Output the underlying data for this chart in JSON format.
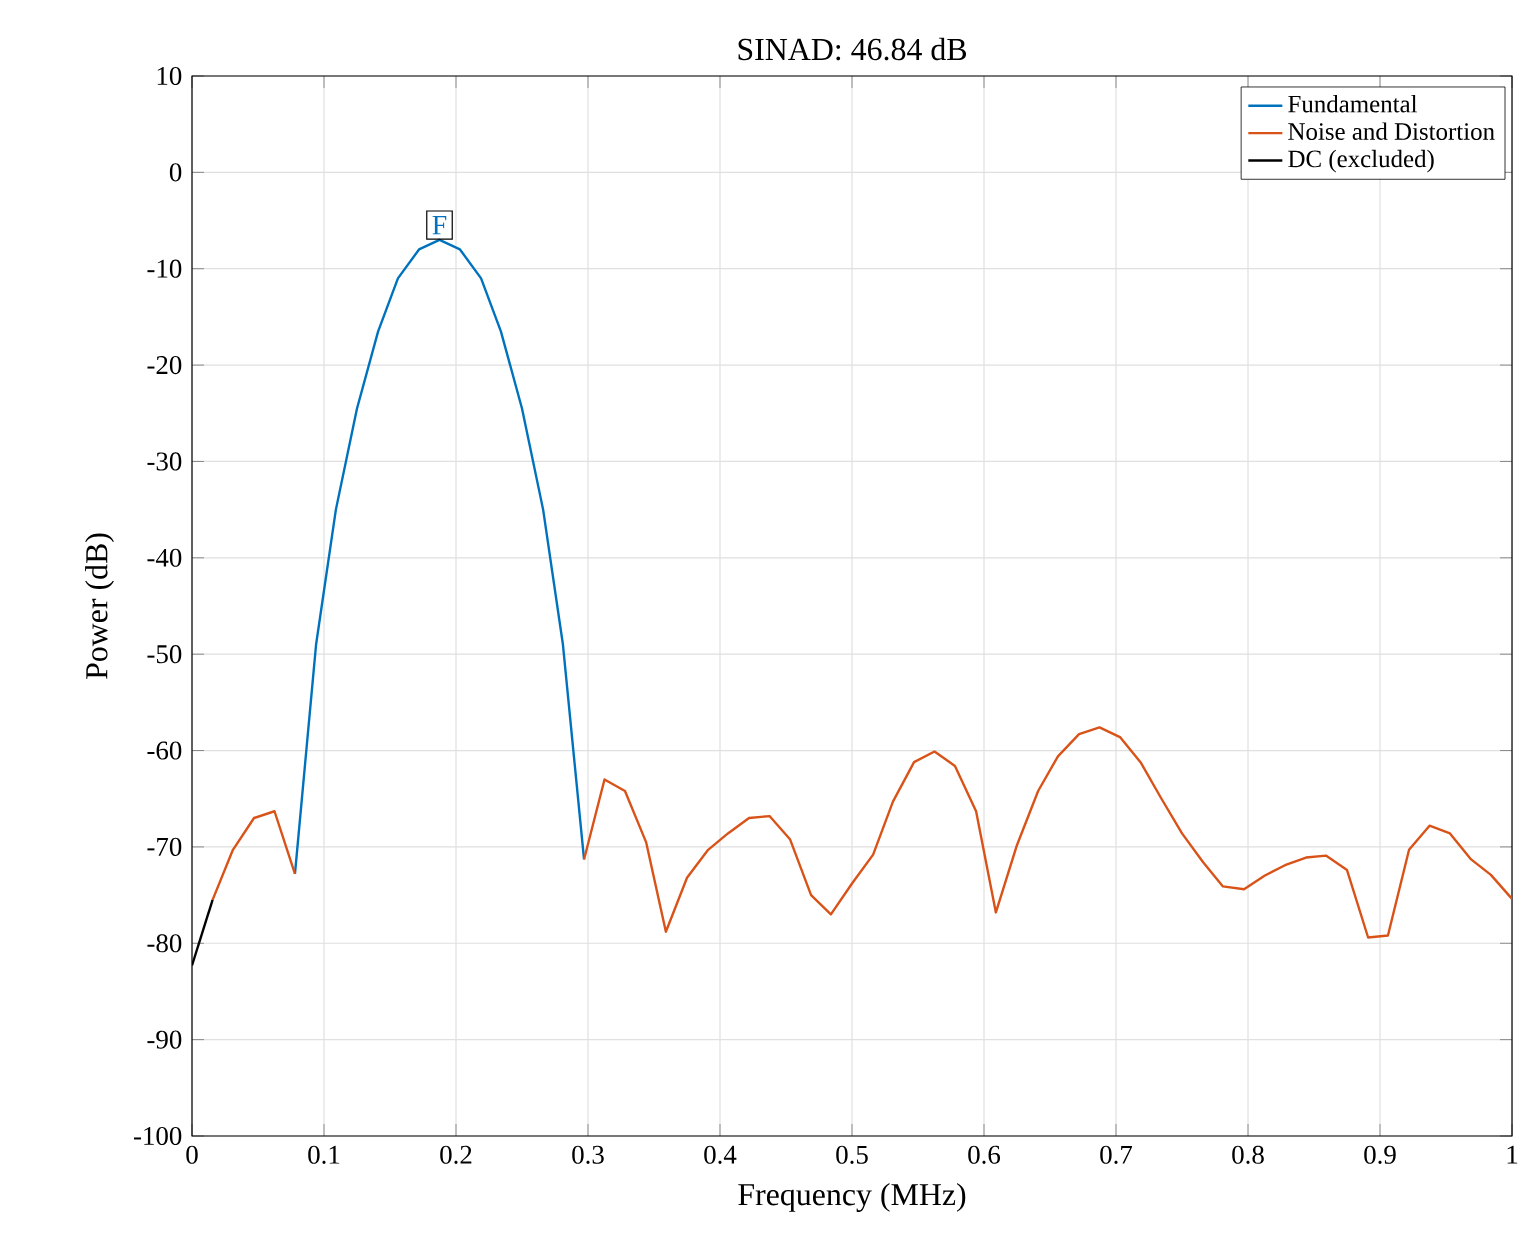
{
  "chart_data": {
    "type": "line",
    "title": "SINAD: 46.84 dB",
    "xlabel": "Frequency (MHz)",
    "ylabel": "Power (dB)",
    "xlim": [
      0,
      1
    ],
    "ylim": [
      -100,
      10
    ],
    "xticks": [
      0,
      0.1,
      0.2,
      0.3,
      0.4,
      0.5,
      0.6,
      0.7,
      0.8,
      0.9,
      1
    ],
    "yticks": [
      -100,
      -90,
      -80,
      -70,
      -60,
      -50,
      -40,
      -30,
      -20,
      -10,
      0,
      10
    ],
    "grid": true,
    "legend": "top right",
    "line_style": "solid",
    "marker": "none",
    "annotations": [
      {
        "text": "F",
        "x": 0.1875,
        "y": -7
      }
    ],
    "series": [
      {
        "name": "Fundamental",
        "color": "#0072bd",
        "x": [
          0.078,
          0.094,
          0.109,
          0.125,
          0.141,
          0.156,
          0.172,
          0.1875,
          0.203,
          0.219,
          0.234,
          0.25,
          0.266,
          0.281,
          0.297
        ],
        "values": [
          -72.8,
          -49,
          -35,
          -24.5,
          -16.5,
          -11,
          -8,
          -7,
          -8,
          -11,
          -16.5,
          -24.5,
          -35,
          -49,
          -71.3
        ]
      },
      {
        "name": "Noise and Distortion",
        "color": "#d95319",
        "x": [
          0.0156,
          0.031,
          0.047,
          0.0625,
          0.078,
          0.094,
          0.297,
          0.3125,
          0.328,
          0.344,
          0.359,
          0.375,
          0.391,
          0.406,
          0.422,
          0.4375,
          0.453,
          0.469,
          0.484,
          0.5,
          0.516,
          0.531,
          0.547,
          0.5625,
          0.578,
          0.594,
          0.609,
          0.625,
          0.641,
          0.656,
          0.672,
          0.6875,
          0.703,
          0.719,
          0.734,
          0.75,
          0.766,
          0.781,
          0.797,
          0.8125,
          0.828,
          0.844,
          0.859,
          0.875,
          0.891,
          0.906,
          0.922,
          0.9375,
          0.953,
          0.969,
          0.984,
          1
        ],
        "values": [
          -75.5,
          -70.3,
          -67,
          -66.3,
          -72.8,
          null,
          -71.3,
          -63,
          -64.2,
          -69.5,
          -78.8,
          -73.2,
          -70.3,
          -68.6,
          -67,
          -66.8,
          -69.2,
          -75,
          -77,
          -73.8,
          -70.8,
          -65.3,
          -61.2,
          -60.1,
          -61.6,
          -66.3,
          -76.8,
          -69.8,
          -64.2,
          -60.6,
          -58.3,
          -57.6,
          -58.6,
          -61.3,
          -64.9,
          -68.6,
          -71.6,
          -74.1,
          -74.4,
          -73,
          -71.9,
          -71.1,
          -70.9,
          -72.4,
          -79.4,
          -79.2,
          -70.3,
          -67.8,
          -68.6,
          -71.3,
          -72.9,
          -75.4
        ]
      },
      {
        "name": "DC (excluded)",
        "color": "#000000",
        "x": [
          0,
          0.0156
        ],
        "values": [
          -82.3,
          -75.5
        ]
      }
    ]
  }
}
